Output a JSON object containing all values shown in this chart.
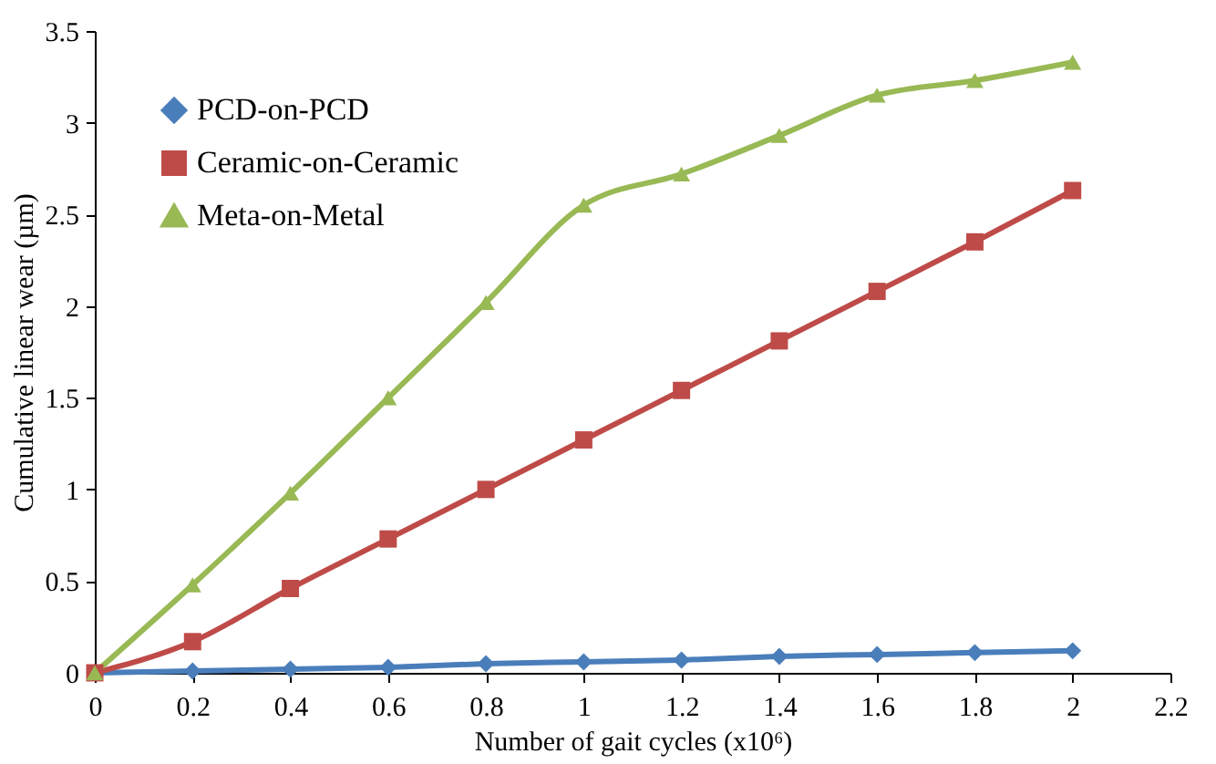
{
  "chart_data": {
    "type": "line",
    "xlabel": "Number of gait cycles (x10⁶)",
    "ylabel": "Cumulative linear  wear (µm)",
    "x": [
      0,
      0.2,
      0.4,
      0.6,
      0.8,
      1,
      1.2,
      1.4,
      1.6,
      1.8,
      2
    ],
    "series": [
      {
        "name": "PCD-on-PCD",
        "color": "#4a7ebb",
        "marker": "diamond",
        "values": [
          0,
          0.01,
          0.02,
          0.03,
          0.05,
          0.06,
          0.07,
          0.09,
          0.1,
          0.11,
          0.12
        ]
      },
      {
        "name": "Ceramic-on-Ceramic",
        "color": "#be4b48",
        "marker": "square",
        "values": [
          0,
          0.17,
          0.46,
          0.73,
          1.0,
          1.27,
          1.54,
          1.81,
          2.08,
          2.35,
          2.63
        ]
      },
      {
        "name": "Meta-on-Metal",
        "color": "#98b954",
        "marker": "triangle",
        "values": [
          0,
          0.48,
          0.98,
          1.5,
          2.02,
          2.55,
          2.72,
          2.93,
          3.15,
          3.23,
          3.33
        ]
      }
    ],
    "xlim": [
      0,
      2.2
    ],
    "xticks": [
      0,
      0.2,
      0.4,
      0.6,
      0.8,
      1,
      1.2,
      1.4,
      1.6,
      1.8,
      2,
      2.2
    ],
    "ylim": [
      0,
      3.5
    ],
    "yticks": [
      0,
      0.5,
      1,
      1.5,
      2,
      2.5,
      3,
      3.5
    ],
    "grid": false,
    "legend": "top left",
    "line_style": "solid"
  }
}
